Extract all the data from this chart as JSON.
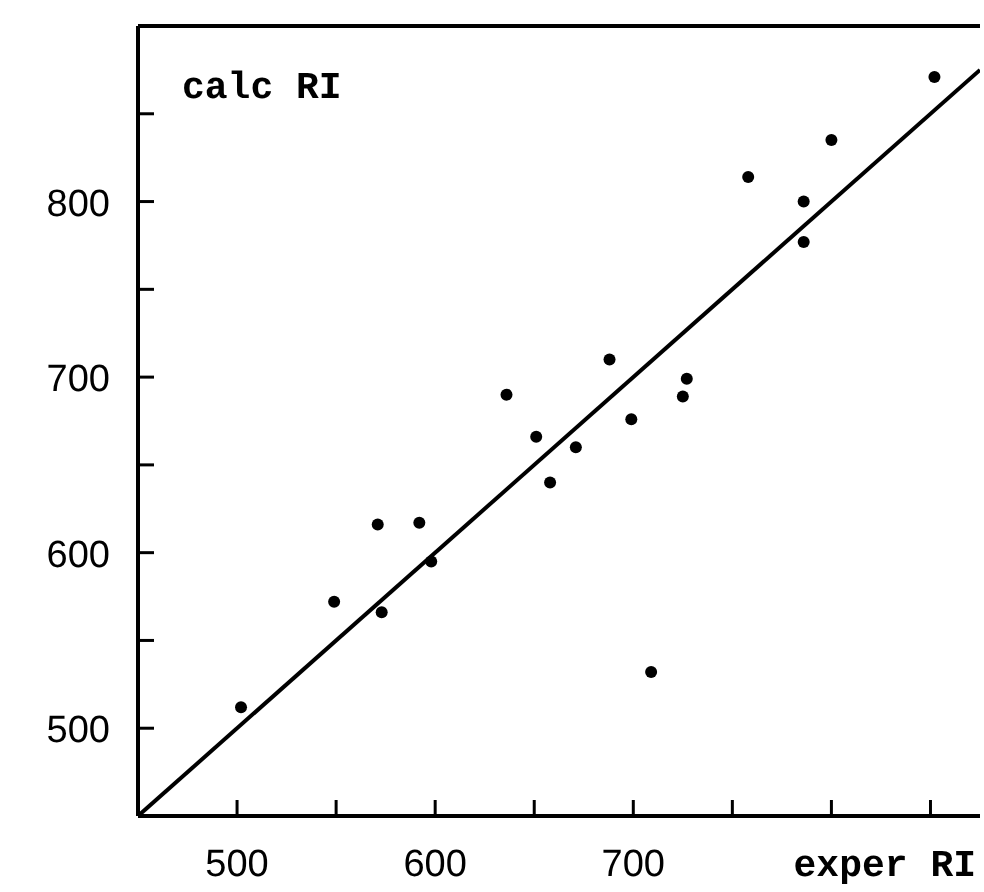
{
  "chart_data": {
    "type": "scatter",
    "xlabel": "exper RI",
    "ylabel": "calc RI",
    "xlim": [
      450,
      875
    ],
    "ylim": [
      450,
      900
    ],
    "xticks": [
      500,
      {
        "value": 550,
        "label": null
      },
      600,
      {
        "value": 650,
        "label": null
      },
      700,
      {
        "value": 750,
        "label": null
      },
      {
        "value": 800,
        "label": null
      },
      {
        "value": 850,
        "label": null
      }
    ],
    "yticks": [
      500,
      {
        "value": 550,
        "label": null
      },
      600,
      {
        "value": 650,
        "label": null
      },
      700,
      {
        "value": 750,
        "label": null
      },
      800,
      {
        "value": 850,
        "label": null
      }
    ],
    "grid": false,
    "marker": "circle",
    "series": [
      {
        "color": "#000000",
        "x": [
          502,
          549,
          571,
          573,
          592,
          598,
          636,
          651,
          658,
          671,
          688,
          699,
          709,
          725,
          727,
          758,
          786,
          786,
          800,
          852
        ],
        "values": [
          512,
          572,
          616,
          566,
          617,
          595,
          690,
          666,
          640,
          660,
          710,
          676,
          532,
          689,
          699,
          814,
          800,
          777,
          835,
          871
        ]
      },
      {
        "type": "line",
        "color": "#000000",
        "line_style": "solid",
        "marker": "none",
        "x": [
          450,
          875
        ],
        "values": [
          450,
          875
        ]
      }
    ]
  }
}
